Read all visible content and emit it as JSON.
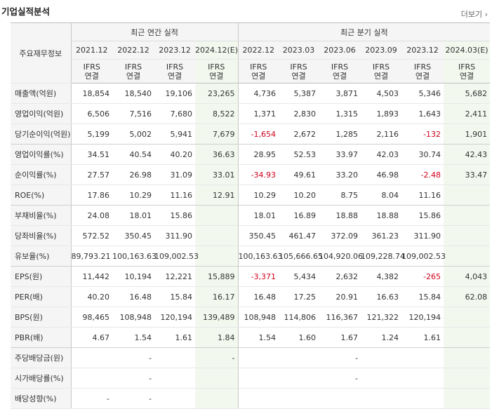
{
  "title": "기업실적분석",
  "more": "더보기",
  "row_header_label": "주요재무정보",
  "groups": [
    "최근 연간 실적",
    "최근 분기 실적"
  ],
  "periods": [
    "2021.12",
    "2022.12",
    "2023.12",
    "2024.12(E)",
    "2022.12",
    "2023.03",
    "2023.06",
    "2023.09",
    "2023.12",
    "2024.03(E)"
  ],
  "ifrs_top": "IFRS",
  "ifrs_bottom": "연결",
  "rows": [
    {
      "label": "매출액(억원)",
      "values": [
        "18,854",
        "18,540",
        "19,106",
        "23,265",
        "4,736",
        "5,387",
        "3,871",
        "4,503",
        "5,346",
        "5,682"
      ]
    },
    {
      "label": "영업이익(억원)",
      "values": [
        "6,506",
        "7,516",
        "7,680",
        "8,522",
        "1,371",
        "2,830",
        "1,315",
        "1,893",
        "1,643",
        "2,411"
      ]
    },
    {
      "label": "당기순이익(억원)",
      "values": [
        "5,199",
        "5,002",
        "5,941",
        "7,679",
        "-1,654",
        "2,672",
        "1,285",
        "2,116",
        "-132",
        "1,901"
      ]
    },
    {
      "label": "영업이익률(%)",
      "values": [
        "34.51",
        "40.54",
        "40.20",
        "36.63",
        "28.95",
        "52.53",
        "33.97",
        "42.03",
        "30.74",
        "42.43"
      ]
    },
    {
      "label": "순이익률(%)",
      "values": [
        "27.57",
        "26.98",
        "31.09",
        "33.01",
        "-34.93",
        "49.61",
        "33.20",
        "46.98",
        "-2.48",
        "33.47"
      ]
    },
    {
      "label": "ROE(%)",
      "values": [
        "17.86",
        "10.29",
        "11.16",
        "12.91",
        "10.29",
        "10.20",
        "8.75",
        "8.04",
        "11.16",
        ""
      ]
    },
    {
      "label": "부채비율(%)",
      "values": [
        "24.08",
        "18.01",
        "15.86",
        "",
        "18.01",
        "16.89",
        "18.88",
        "18.88",
        "15.86",
        ""
      ]
    },
    {
      "label": "당좌비율(%)",
      "values": [
        "572.52",
        "350.45",
        "311.90",
        "",
        "350.45",
        "461.47",
        "372.09",
        "361.23",
        "311.90",
        ""
      ]
    },
    {
      "label": "유보율(%)",
      "values": [
        "89,793.21",
        "100,163.63",
        "109,002.53",
        "",
        "100,163.63",
        "105,666.65",
        "104,920.06",
        "109,228.74",
        "109,002.53",
        ""
      ]
    },
    {
      "label": "EPS(원)",
      "values": [
        "11,442",
        "10,194",
        "12,221",
        "15,889",
        "-3,371",
        "5,434",
        "2,632",
        "4,382",
        "-265",
        "4,043"
      ]
    },
    {
      "label": "PER(배)",
      "values": [
        "40.20",
        "16.48",
        "15.84",
        "16.17",
        "16.48",
        "17.25",
        "20.91",
        "16.63",
        "15.84",
        "62.08"
      ]
    },
    {
      "label": "BPS(원)",
      "values": [
        "98,465",
        "108,948",
        "120,194",
        "139,489",
        "108,948",
        "114,806",
        "116,367",
        "121,322",
        "120,194",
        ""
      ]
    },
    {
      "label": "PBR(배)",
      "values": [
        "4.67",
        "1.54",
        "1.61",
        "1.84",
        "1.54",
        "1.60",
        "1.67",
        "1.24",
        "1.61",
        ""
      ]
    },
    {
      "label": "주당배당금(원)",
      "values": [
        "",
        "-",
        "",
        "-",
        "",
        "",
        "-",
        "",
        "",
        ""
      ]
    },
    {
      "label": "시가배당률(%)",
      "values": [
        "",
        "-",
        "",
        "",
        "",
        "",
        "-",
        "",
        "",
        ""
      ]
    },
    {
      "label": "배당성향(%)",
      "values": [
        "-",
        "-",
        "",
        "",
        "",
        "",
        "",
        "",
        "",
        ""
      ]
    }
  ]
}
